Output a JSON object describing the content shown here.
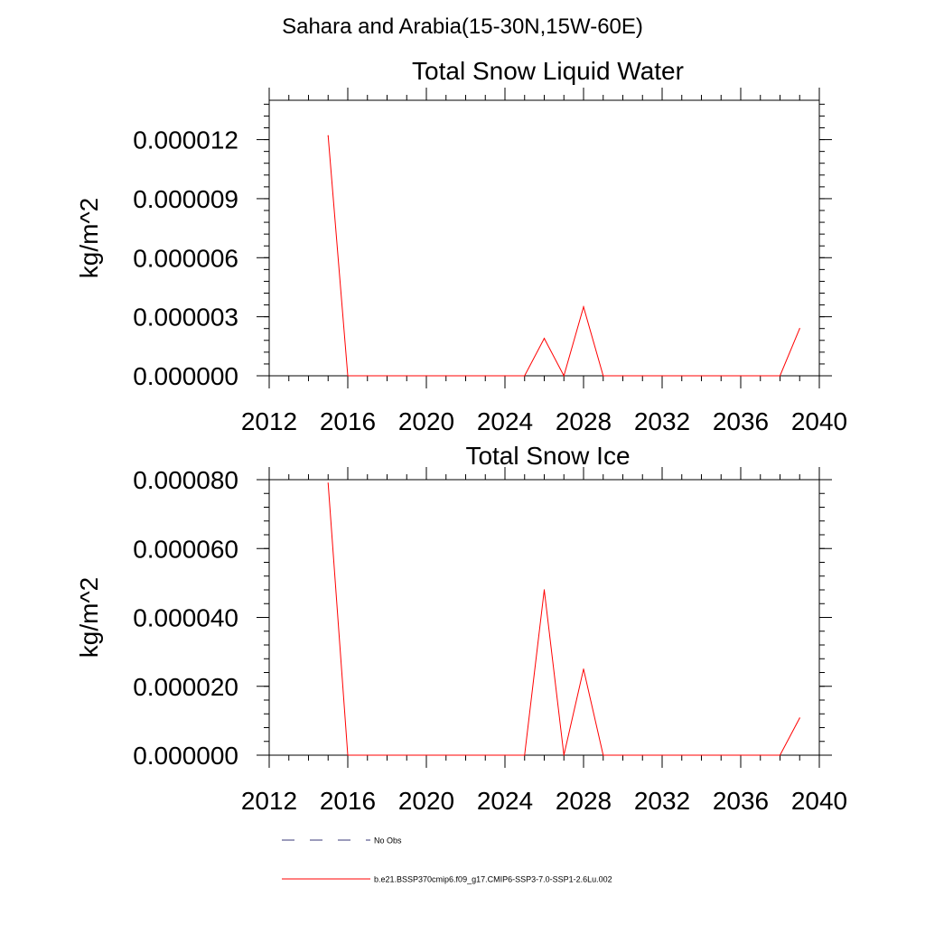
{
  "page": {
    "region_title": "Sahara and Arabia(15-30N,15W-60E)"
  },
  "chart_data": [
    {
      "type": "line",
      "title": "Total Snow Liquid Water",
      "ylabel": "kg/m^2",
      "xlabel": "",
      "xlim": [
        2012,
        2040
      ],
      "ylim": [
        0,
        1.4e-05
      ],
      "x_ticks": [
        2012,
        2016,
        2020,
        2024,
        2028,
        2032,
        2036,
        2040
      ],
      "x_tick_labels": [
        "2012",
        "2016",
        "2020",
        "2024",
        "2028",
        "2032",
        "2036",
        "2040"
      ],
      "y_ticks": [
        0,
        3e-06,
        6e-06,
        9e-06,
        1.2e-05
      ],
      "y_tick_labels": [
        "0.000000",
        "0.000003",
        "0.000006",
        "0.000009",
        "0.000012"
      ],
      "y_minor_step": 6e-07,
      "x_minor_step": 1,
      "grid": false,
      "series": [
        {
          "color": "#ff0000",
          "x": [
            2015,
            2016,
            2017,
            2018,
            2019,
            2020,
            2021,
            2022,
            2023,
            2024,
            2025,
            2026,
            2027,
            2028,
            2029,
            2030,
            2031,
            2032,
            2033,
            2034,
            2035,
            2036,
            2037,
            2038,
            2039
          ],
          "y": [
            1.22e-05,
            0,
            0,
            0,
            0,
            0,
            0,
            0,
            0,
            0,
            0,
            1.9e-06,
            0,
            3.5e-06,
            0,
            0,
            0,
            0,
            0,
            0,
            0,
            0,
            0,
            0,
            2.4e-06
          ]
        }
      ]
    },
    {
      "type": "line",
      "title": "Total Snow Ice",
      "ylabel": "kg/m^2",
      "xlabel": "",
      "xlim": [
        2012,
        2040
      ],
      "ylim": [
        0,
        8e-05
      ],
      "x_ticks": [
        2012,
        2016,
        2020,
        2024,
        2028,
        2032,
        2036,
        2040
      ],
      "x_tick_labels": [
        "2012",
        "2016",
        "2020",
        "2024",
        "2028",
        "2032",
        "2036",
        "2040"
      ],
      "y_ticks": [
        0,
        2e-05,
        4e-05,
        6e-05,
        8e-05
      ],
      "y_tick_labels": [
        "0.000000",
        "0.000020",
        "0.000040",
        "0.000060",
        "0.000080"
      ],
      "y_minor_step": 4e-06,
      "x_minor_step": 1,
      "grid": false,
      "series": [
        {
          "color": "#ff0000",
          "x": [
            2015,
            2016,
            2017,
            2018,
            2019,
            2020,
            2021,
            2022,
            2023,
            2024,
            2025,
            2026,
            2027,
            2028,
            2029,
            2030,
            2031,
            2032,
            2033,
            2034,
            2035,
            2036,
            2037,
            2038,
            2039
          ],
          "y": [
            7.9e-05,
            0,
            0,
            0,
            0,
            0,
            0,
            0,
            0,
            0,
            0,
            4.8e-05,
            0,
            2.5e-05,
            0,
            0,
            0,
            0,
            0,
            0,
            0,
            0,
            0,
            0,
            1.08e-05
          ]
        }
      ]
    }
  ],
  "legend": {
    "placement": "bottom-left",
    "items": [
      {
        "label": "No Obs",
        "style": "dashed",
        "color": "#3a3a7a"
      },
      {
        "label": "b.e21.BSSP370cmip6.f09_g17.CMIP6-SSP3-7.0-SSP1-2.6Lu.002",
        "style": "solid",
        "color": "#ff0000"
      }
    ]
  }
}
